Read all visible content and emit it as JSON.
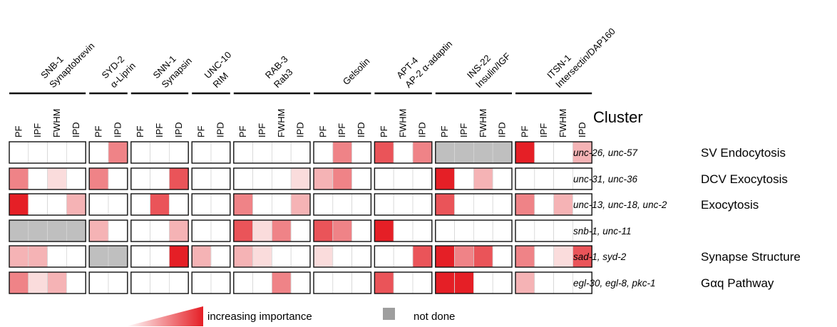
{
  "groups": [
    {
      "line1": "SNB-1",
      "line2": "Synaptobrevin",
      "columns": [
        "PF",
        "IPF",
        "FWHM",
        "IPD"
      ]
    },
    {
      "line1": "SYD-2",
      "line2": "α-Liprin",
      "columns": [
        "PF",
        "IPD"
      ]
    },
    {
      "line1": "SNN-1",
      "line2": "Synapsin",
      "columns": [
        "PF",
        "IPF",
        "IPD"
      ]
    },
    {
      "line1": "UNC-10",
      "line2": "RIM",
      "columns": [
        "PF",
        "IPD"
      ]
    },
    {
      "line1": "RAB-3",
      "line2": "Rab3",
      "columns": [
        "PF",
        "IPF",
        "FWHM",
        "IPD"
      ]
    },
    {
      "line1": "Gelsolin",
      "line2": "",
      "columns": [
        "PF",
        "IPF",
        "IPD"
      ]
    },
    {
      "line1": "APT-4",
      "line2": "AP-2 α-adaptin",
      "columns": [
        "PF",
        "FWHM",
        "IPD"
      ]
    },
    {
      "line1": "INS-22",
      "line2": "Insulin/IGF",
      "columns": [
        "PF",
        "IPF",
        "FWHM",
        "IPD"
      ]
    },
    {
      "line1": "ITSN-1",
      "line2": "Intersectin/DAP160",
      "columns": [
        "PF",
        "IPF",
        "FWHM",
        "IPD"
      ]
    }
  ],
  "cluster_header": "Cluster",
  "rows": [
    {
      "genes": "unc-26, unc-57",
      "pathway": "SV Endocytosis",
      "cells": [
        0,
        0,
        0,
        0,
        0,
        3,
        0,
        0,
        0,
        0,
        0,
        0,
        0,
        0,
        0,
        0,
        3,
        0,
        4,
        0,
        3,
        -1,
        -1,
        -1,
        -1,
        5,
        0,
        0,
        2
      ]
    },
    {
      "genes": "unc-31, unc-36",
      "pathway": "DCV Exocytosis",
      "cells": [
        3,
        0,
        1,
        0,
        3,
        0,
        0,
        0,
        4,
        0,
        0,
        0,
        0,
        0,
        1,
        2,
        3,
        0,
        0,
        0,
        0,
        5,
        0,
        2,
        0,
        0,
        0,
        0,
        0
      ]
    },
    {
      "genes": "unc-13, unc-18, unc-2",
      "pathway": "Exocytosis",
      "cells": [
        5,
        0,
        0,
        2,
        0,
        0,
        0,
        4,
        0,
        0,
        0,
        3,
        0,
        0,
        2,
        0,
        0,
        0,
        0,
        0,
        0,
        4,
        0,
        0,
        0,
        3,
        0,
        2,
        0
      ]
    },
    {
      "genes": "snb-1, unc-11",
      "pathway": "",
      "cells": [
        -1,
        -1,
        -1,
        -1,
        2,
        0,
        0,
        0,
        2,
        0,
        0,
        4,
        1,
        3,
        0,
        4,
        3,
        0,
        5,
        0,
        0,
        0,
        0,
        0,
        0,
        0,
        0,
        0,
        0
      ]
    },
    {
      "genes": "sad-1, syd-2",
      "pathway": "Synapse Structure",
      "cells": [
        2,
        2,
        0,
        0,
        -1,
        -1,
        0,
        0,
        5,
        2,
        0,
        2,
        1,
        0,
        0,
        1,
        0,
        0,
        0,
        0,
        4,
        5,
        3,
        4,
        0,
        3,
        0,
        1,
        4
      ]
    },
    {
      "genes": "egl-30, egl-8, pkc-1",
      "pathway": "Gαq Pathway",
      "cells": [
        3,
        1,
        2,
        0,
        0,
        0,
        0,
        0,
        0,
        0,
        0,
        0,
        0,
        3,
        0,
        0,
        0,
        0,
        4,
        0,
        0,
        5,
        5,
        0,
        0,
        2,
        0,
        0,
        0
      ]
    }
  ],
  "scale_colors": [
    "#ffffff",
    "#fadcdc",
    "#f5b3b5",
    "#ef8387",
    "#ea5459",
    "#e51f26"
  ],
  "not_done_color": "#bfbfbf",
  "legend": {
    "importance_label": "increasing importance",
    "not_done_label": "not done"
  }
}
